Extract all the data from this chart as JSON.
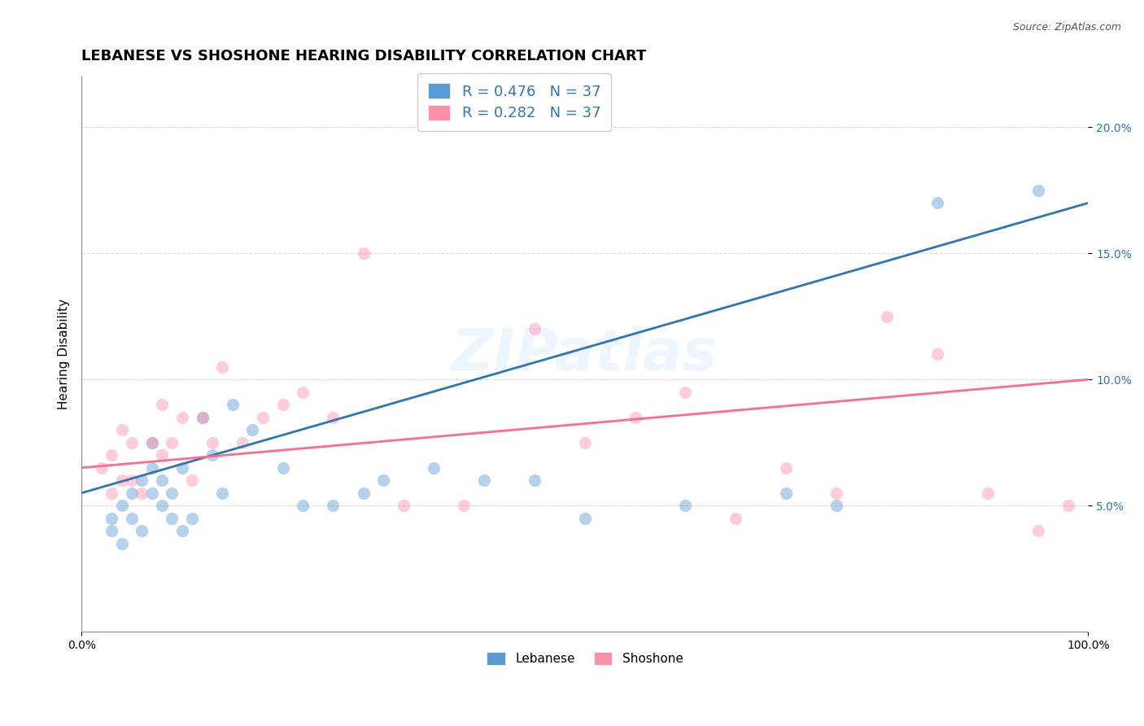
{
  "title": "LEBANESE VS SHOSHONE HEARING DISABILITY CORRELATION CHART",
  "source": "Source: ZipAtlas.com",
  "xlabel": "",
  "ylabel": "Hearing Disability",
  "xlim": [
    0,
    100
  ],
  "ylim": [
    0,
    22
  ],
  "xtick_labels": [
    "0.0%",
    "100.0%"
  ],
  "xtick_positions": [
    0,
    100
  ],
  "ytick_labels": [
    "5.0%",
    "10.0%",
    "15.0%",
    "20.0%"
  ],
  "ytick_positions": [
    5,
    10,
    15,
    20
  ],
  "legend_r_blue": "R = 0.476",
  "legend_n_blue": "N = 37",
  "legend_r_pink": "R = 0.282",
  "legend_n_pink": "N = 37",
  "legend_label_blue": "Lebanese",
  "legend_label_pink": "Shoshone",
  "blue_color": "#5B9BD5",
  "pink_color": "#FF8FAB",
  "blue_line_color": "#2E75B6",
  "pink_line_color": "#FF6B8A",
  "watermark": "ZIPatlas",
  "blue_scatter_x": [
    3,
    3,
    4,
    4,
    5,
    5,
    6,
    6,
    7,
    7,
    7,
    8,
    8,
    9,
    9,
    10,
    10,
    11,
    12,
    13,
    14,
    15,
    17,
    20,
    22,
    25,
    28,
    30,
    35,
    40,
    45,
    50,
    60,
    70,
    75,
    85,
    95
  ],
  "blue_scatter_y": [
    4.0,
    4.5,
    3.5,
    5.0,
    4.5,
    5.5,
    6.0,
    4.0,
    5.5,
    6.5,
    7.5,
    5.0,
    6.0,
    4.5,
    5.5,
    4.0,
    6.5,
    4.5,
    8.5,
    7.0,
    5.5,
    9.0,
    8.0,
    6.5,
    5.0,
    5.0,
    5.5,
    6.0,
    6.5,
    6.0,
    6.0,
    4.5,
    5.0,
    5.5,
    5.0,
    17.0,
    17.5
  ],
  "pink_scatter_x": [
    2,
    3,
    3,
    4,
    4,
    5,
    5,
    6,
    7,
    8,
    8,
    9,
    10,
    11,
    12,
    13,
    14,
    16,
    18,
    20,
    22,
    25,
    28,
    32,
    38,
    45,
    50,
    55,
    60,
    65,
    70,
    75,
    80,
    85,
    90,
    95,
    98
  ],
  "pink_scatter_y": [
    6.5,
    5.5,
    7.0,
    6.0,
    8.0,
    6.0,
    7.5,
    5.5,
    7.5,
    7.0,
    9.0,
    7.5,
    8.5,
    6.0,
    8.5,
    7.5,
    10.5,
    7.5,
    8.5,
    9.0,
    9.5,
    8.5,
    15.0,
    5.0,
    5.0,
    12.0,
    7.5,
    8.5,
    9.5,
    4.5,
    6.5,
    5.5,
    12.5,
    11.0,
    5.5,
    4.0,
    5.0
  ],
  "blue_line_x": [
    0,
    100
  ],
  "blue_line_y": [
    5.5,
    17.0
  ],
  "pink_line_x": [
    0,
    100
  ],
  "pink_line_y": [
    6.5,
    10.0
  ],
  "background_color": "#FFFFFF",
  "grid_color": "#CCCCCC",
  "title_fontsize": 13,
  "axis_fontsize": 11,
  "tick_fontsize": 10,
  "scatter_size": 120,
  "scatter_alpha": 0.45,
  "line_width": 2.0
}
